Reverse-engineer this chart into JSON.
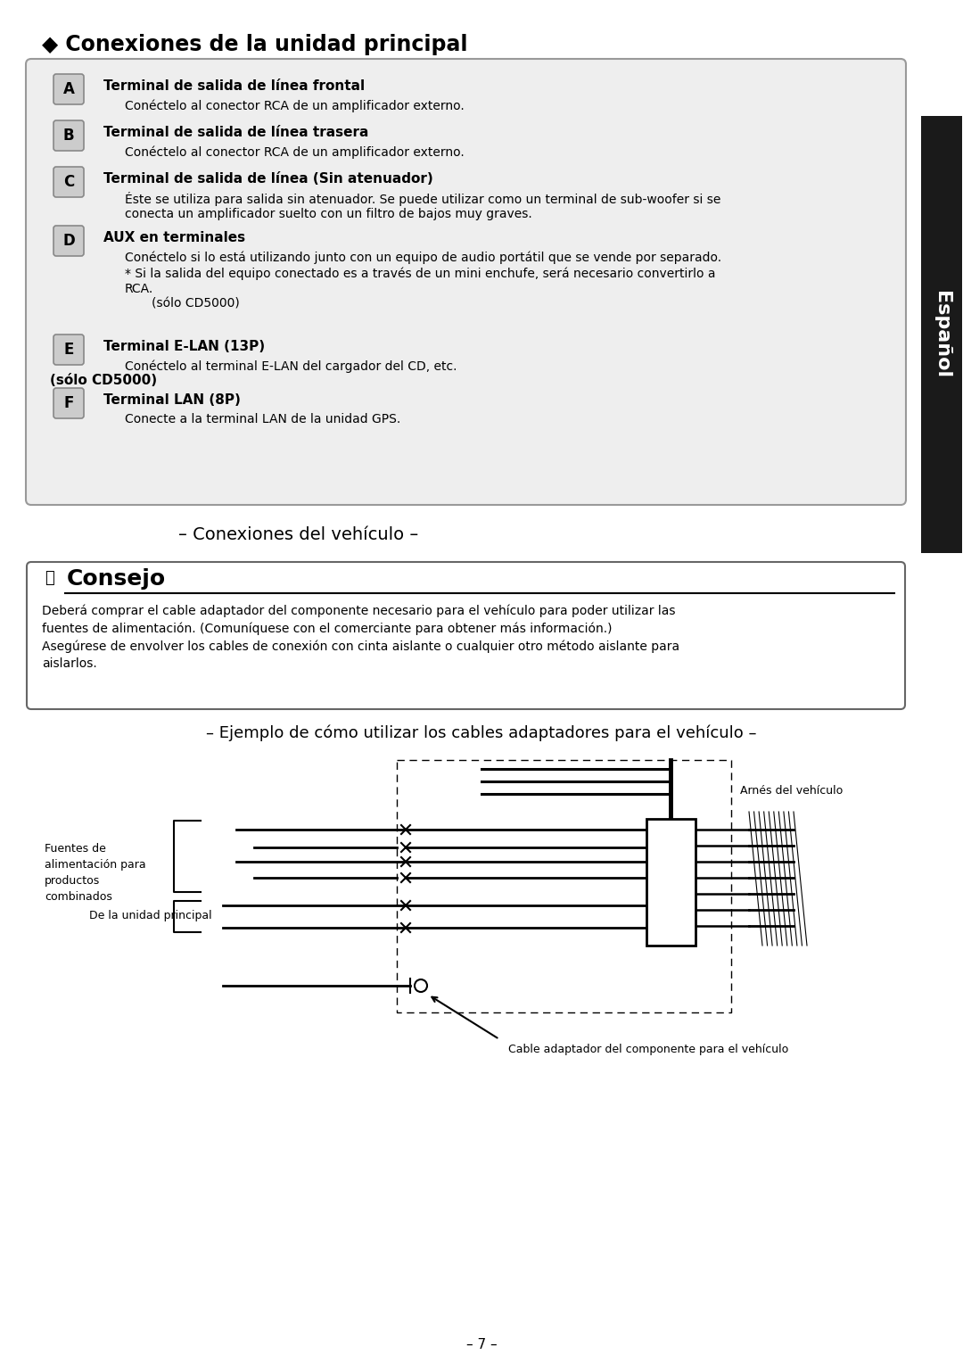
{
  "bg_color": "#ffffff",
  "main_title": "◆ Conexiones de la unidad principal",
  "sidebar_text": "Español",
  "sidebar_bg": "#1a1a1a",
  "section_a_title": "Terminal de salida de línea frontal",
  "section_a_desc": "Conéctelo al conector RCA de un amplificador externo.",
  "section_b_title": "Terminal de salida de línea trasera",
  "section_b_desc": "Conéctelo al conector RCA de un amplificador externo.",
  "section_c_title": "Terminal de salida de línea (Sin atenuador)",
  "section_c_desc1": "Éste se utiliza para salida sin atenuador. Se puede utilizar como un terminal de sub-woofer si se",
  "section_c_desc2": "conecta un amplificador suelto con un filtro de bajos muy graves.",
  "section_d_title": "AUX en terminales",
  "section_d_desc1": "Conéctelo si lo está utilizando junto con un equipo de audio portátil que se vende por separado.",
  "section_d_desc2": "* Si la salida del equipo conectado es a través de un mini enchufe, será necesario convertirlo a",
  "section_d_desc3": "RCA.",
  "section_d_desc4": "(sólo CD5000)",
  "section_e_label": "(sólo CD5000)",
  "section_e_title": "Terminal E-LAN (13P)",
  "section_e_desc": "Conéctelo al terminal E-LAN del cargador del CD, etc.",
  "section_f_title": "Terminal LAN (8P)",
  "section_f_desc": "Conecte a la terminal LAN de la unidad GPS.",
  "vehicle_conn_title": "– Conexiones del vehículo –",
  "consejo_title": "Consejo",
  "consejo_text1": "Deberá comprar el cable adaptador del componente necesario para el vehículo para poder utilizar las",
  "consejo_text2": "fuentes de alimentación. (Comuníquese con el comerciante para obtener más información.)",
  "consejo_text3": "Asegúrese de envolver los cables de conexión con cinta aislante o cualquier otro método aislante para",
  "consejo_text4": "aislarlos.",
  "example_title": "– Ejemplo de cómo utilizar los cables adaptadores para el vehículo –",
  "label_arnes": "Arnés del vehículo",
  "label_fuentes": "Fuentes de\nalimentación para\nproductos\ncombinados",
  "label_unidad": "De la unidad principal",
  "label_cable": "Cable adaptador del componente para el vehículo",
  "page_number": "– 7 –"
}
